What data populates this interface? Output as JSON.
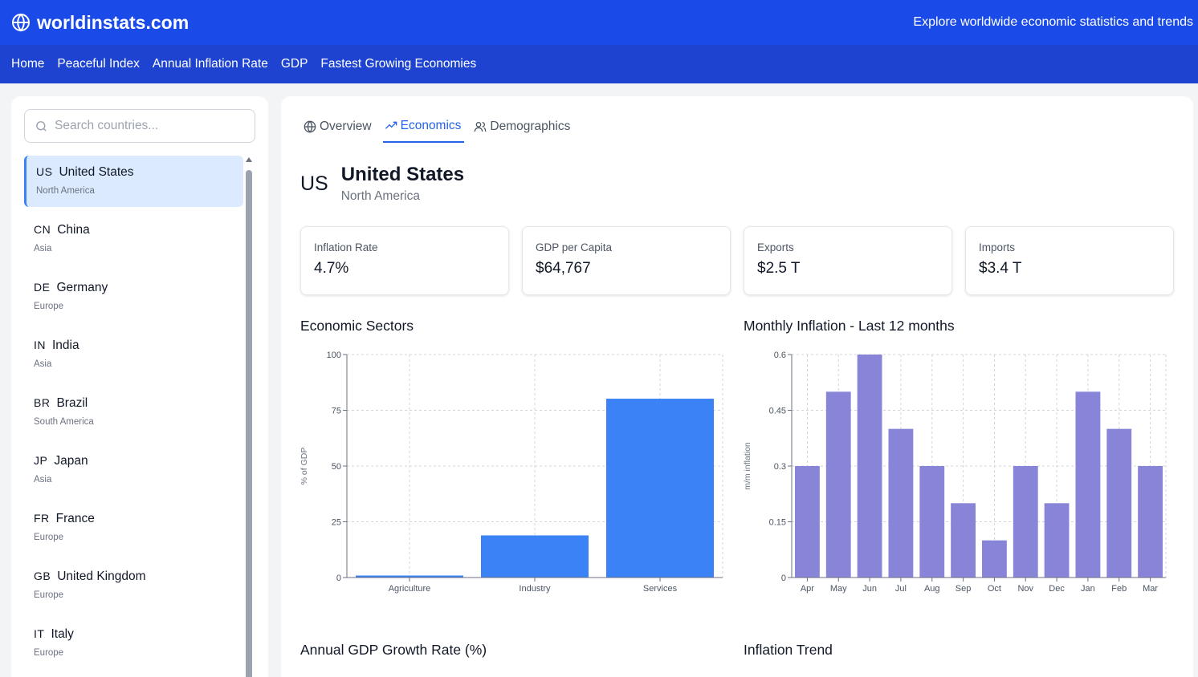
{
  "header": {
    "site_name": "worldinstats.com",
    "tagline": "Explore worldwide economic statistics and trends"
  },
  "nav": [
    "Home",
    "Peaceful Index",
    "Annual Inflation Rate",
    "GDP",
    "Fastest Growing Economies"
  ],
  "search": {
    "placeholder": "Search countries..."
  },
  "countries": [
    {
      "code": "US",
      "name": "United States",
      "region": "North America",
      "active": true
    },
    {
      "code": "CN",
      "name": "China",
      "region": "Asia"
    },
    {
      "code": "DE",
      "name": "Germany",
      "region": "Europe"
    },
    {
      "code": "IN",
      "name": "India",
      "region": "Asia"
    },
    {
      "code": "BR",
      "name": "Brazil",
      "region": "South America"
    },
    {
      "code": "JP",
      "name": "Japan",
      "region": "Asia"
    },
    {
      "code": "FR",
      "name": "France",
      "region": "Europe"
    },
    {
      "code": "GB",
      "name": "United Kingdom",
      "region": "Europe"
    },
    {
      "code": "IT",
      "name": "Italy",
      "region": "Europe"
    }
  ],
  "tabs": [
    {
      "label": "Overview",
      "icon": "globe-icon"
    },
    {
      "label": "Economics",
      "icon": "trending-up-icon",
      "active": true
    },
    {
      "label": "Demographics",
      "icon": "users-icon"
    }
  ],
  "selected": {
    "code": "US",
    "name": "United States",
    "region": "North America"
  },
  "stats": [
    {
      "label": "Inflation Rate",
      "value": "4.7%"
    },
    {
      "label": "GDP per Capita",
      "value": "$64,767"
    },
    {
      "label": "Exports",
      "value": "$2.5 T"
    },
    {
      "label": "Imports",
      "value": "$3.4 T"
    }
  ],
  "sections": {
    "sectors": "Economic Sectors",
    "monthly": "Monthly Inflation - Last 12 months",
    "gdp_growth": "Annual GDP Growth Rate (%)",
    "trend": "Inflation Trend"
  },
  "colors": {
    "brand": "#1a4be8",
    "nav": "#1d43d0",
    "sector_bar": "#3b82f6",
    "inflation_bar": "#8884d8"
  },
  "chart_data": [
    {
      "type": "bar",
      "title": "Economic Sectors",
      "ylabel": "% of GDP",
      "categories": [
        "Agriculture",
        "Industry",
        "Services"
      ],
      "values": [
        0.9,
        18.9,
        80.2
      ],
      "ylim": [
        0,
        100
      ],
      "yticks": [
        0,
        25,
        50,
        75,
        100
      ],
      "grid": true
    },
    {
      "type": "bar",
      "title": "Monthly Inflation - Last 12 months",
      "ylabel": "m/m inflation",
      "categories": [
        "Apr",
        "May",
        "Jun",
        "Jul",
        "Aug",
        "Sep",
        "Oct",
        "Nov",
        "Dec",
        "Jan",
        "Feb",
        "Mar"
      ],
      "values": [
        0.3,
        0.5,
        0.6,
        0.4,
        0.3,
        0.2,
        0.1,
        0.3,
        0.2,
        0.5,
        0.4,
        0.3
      ],
      "ylim": [
        0,
        0.6
      ],
      "yticks": [
        0,
        0.15,
        0.3,
        0.45,
        0.6
      ],
      "grid": true
    }
  ]
}
